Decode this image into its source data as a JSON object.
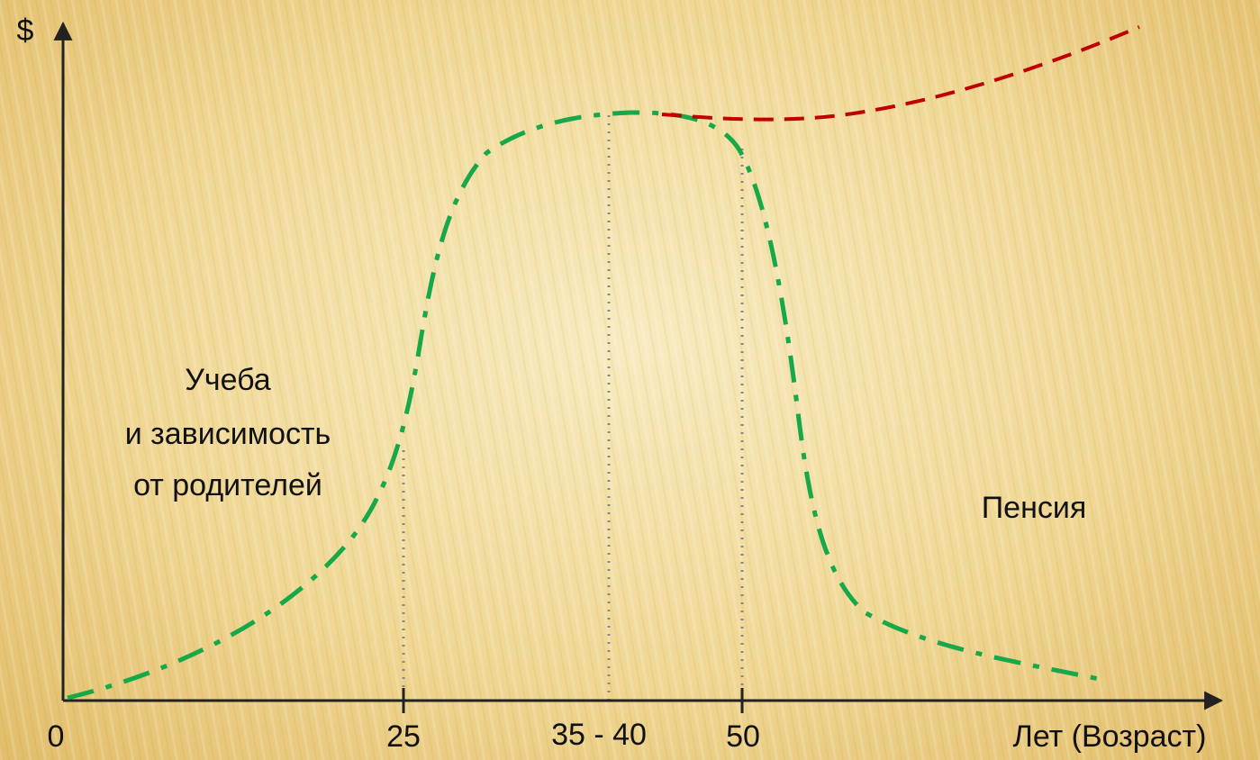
{
  "axes": {
    "y_label": "$",
    "x_label": "Лет (Возраст)",
    "x_ticks": [
      "0",
      "25",
      "35 - 40",
      "50"
    ]
  },
  "regions": {
    "study": [
      "Учеба",
      "и зависимость",
      "от родителей"
    ],
    "pension": "Пенсия"
  }
}
